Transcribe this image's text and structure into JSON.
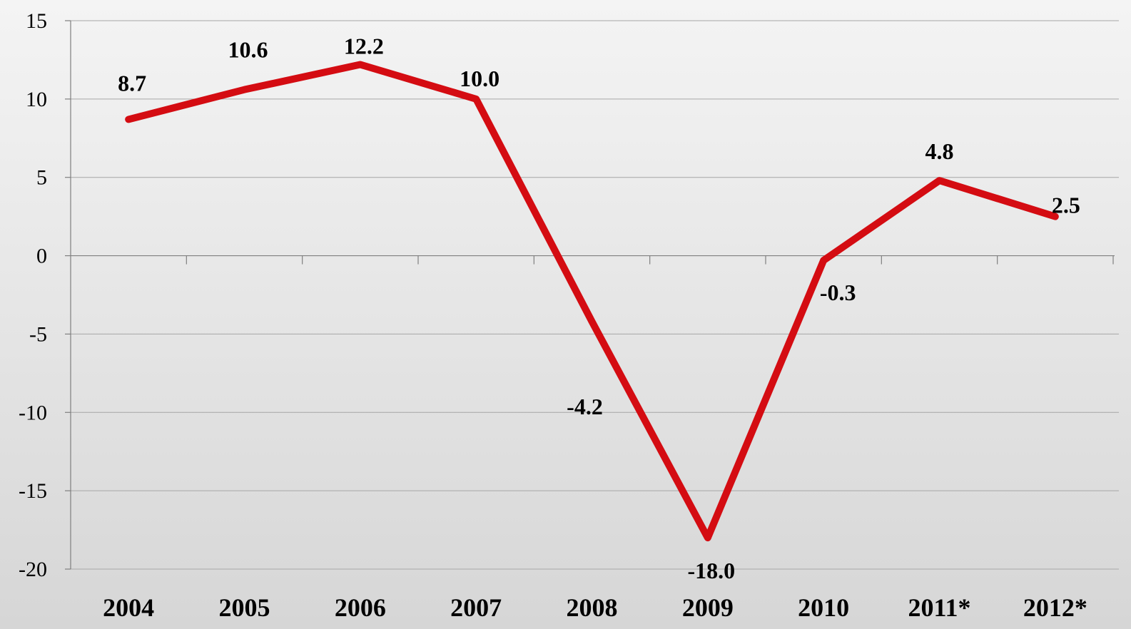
{
  "chart_data": {
    "type": "line",
    "categories": [
      "2004",
      "2005",
      "2006",
      "2007",
      "2008",
      "2009",
      "2010",
      "2011*",
      "2012*"
    ],
    "series": [
      {
        "values": [
          8.7,
          10.6,
          12.2,
          10.0,
          -4.2,
          -18.0,
          -0.3,
          4.8,
          2.5
        ],
        "color": "#d40c12"
      }
    ],
    "data_labels": [
      "8.7",
      "10.6",
      "12.2",
      "10.0",
      "-4.2",
      "-18.0",
      "-0.3",
      "4.8",
      "2.5"
    ],
    "y_ticks": [
      "15",
      "10",
      "5",
      "0",
      "-5",
      "-10",
      "-15",
      "-20"
    ],
    "ylim": [
      -20,
      15
    ],
    "grid": true,
    "legend": "none",
    "title": "",
    "xlabel": "",
    "ylabel": ""
  }
}
